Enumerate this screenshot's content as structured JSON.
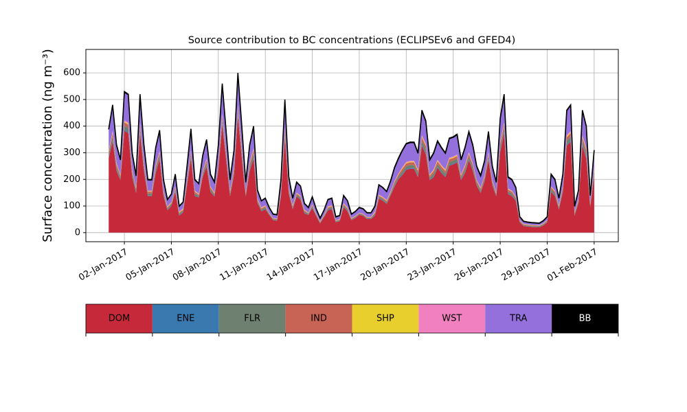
{
  "chart_data": {
    "type": "stacked_area",
    "title": "Source contribution to BC concentrations (ECLIPSEv6 and GFED4)",
    "ylabel": "Surface concentration (ng m⁻³)",
    "x": [
      "2017-01-01T00:00",
      "2017-01-01T06:00",
      "2017-01-01T12:00",
      "2017-01-01T18:00",
      "2017-01-02T00:00",
      "2017-01-02T06:00",
      "2017-01-02T12:00",
      "2017-01-02T18:00",
      "2017-01-03T00:00",
      "2017-01-03T06:00",
      "2017-01-03T12:00",
      "2017-01-03T18:00",
      "2017-01-04T00:00",
      "2017-01-04T06:00",
      "2017-01-04T12:00",
      "2017-01-04T18:00",
      "2017-01-05T00:00",
      "2017-01-05T06:00",
      "2017-01-05T12:00",
      "2017-01-05T18:00",
      "2017-01-06T00:00",
      "2017-01-06T06:00",
      "2017-01-06T12:00",
      "2017-01-06T18:00",
      "2017-01-07T00:00",
      "2017-01-07T06:00",
      "2017-01-07T12:00",
      "2017-01-07T18:00",
      "2017-01-08T00:00",
      "2017-01-08T06:00",
      "2017-01-08T12:00",
      "2017-01-08T18:00",
      "2017-01-09T00:00",
      "2017-01-09T06:00",
      "2017-01-09T12:00",
      "2017-01-09T18:00",
      "2017-01-10T00:00",
      "2017-01-10T06:00",
      "2017-01-10T12:00",
      "2017-01-10T18:00",
      "2017-01-11T00:00",
      "2017-01-11T06:00",
      "2017-01-11T12:00",
      "2017-01-11T18:00",
      "2017-01-12T00:00",
      "2017-01-12T06:00",
      "2017-01-12T12:00",
      "2017-01-12T18:00",
      "2017-01-13T00:00",
      "2017-01-13T06:00",
      "2017-01-13T12:00",
      "2017-01-13T18:00",
      "2017-01-14T00:00",
      "2017-01-14T06:00",
      "2017-01-14T12:00",
      "2017-01-14T18:00",
      "2017-01-15T00:00",
      "2017-01-15T06:00",
      "2017-01-15T12:00",
      "2017-01-15T18:00",
      "2017-01-16T00:00",
      "2017-01-16T06:00",
      "2017-01-16T12:00",
      "2017-01-16T18:00",
      "2017-01-17T00:00",
      "2017-01-17T06:00",
      "2017-01-17T12:00",
      "2017-01-17T18:00",
      "2017-01-18T00:00",
      "2017-01-18T06:00",
      "2017-01-18T12:00",
      "2017-01-18T18:00",
      "2017-01-19T00:00",
      "2017-01-19T06:00",
      "2017-01-19T12:00",
      "2017-01-19T18:00",
      "2017-01-20T00:00",
      "2017-01-20T06:00",
      "2017-01-20T12:00",
      "2017-01-20T18:00",
      "2017-01-21T00:00",
      "2017-01-21T06:00",
      "2017-01-21T12:00",
      "2017-01-21T18:00",
      "2017-01-22T00:00",
      "2017-01-22T06:00",
      "2017-01-22T12:00",
      "2017-01-22T18:00",
      "2017-01-23T00:00",
      "2017-01-23T06:00",
      "2017-01-23T12:00",
      "2017-01-23T18:00",
      "2017-01-24T00:00",
      "2017-01-24T06:00",
      "2017-01-24T12:00",
      "2017-01-24T18:00",
      "2017-01-25T00:00",
      "2017-01-25T06:00",
      "2017-01-25T12:00",
      "2017-01-25T18:00",
      "2017-01-26T00:00",
      "2017-01-26T06:00",
      "2017-01-26T12:00",
      "2017-01-26T18:00",
      "2017-01-27T00:00",
      "2017-01-27T06:00",
      "2017-01-27T12:00",
      "2017-01-27T18:00",
      "2017-01-28T00:00",
      "2017-01-28T06:00",
      "2017-01-28T12:00",
      "2017-01-28T18:00",
      "2017-01-29T00:00",
      "2017-01-29T06:00",
      "2017-01-29T12:00",
      "2017-01-29T18:00",
      "2017-01-30T00:00",
      "2017-01-30T06:00",
      "2017-01-30T12:00",
      "2017-01-30T18:00",
      "2017-01-31T00:00",
      "2017-01-31T06:00",
      "2017-01-31T12:00",
      "2017-01-31T18:00",
      "2017-02-01T00:00"
    ],
    "series": [
      {
        "name": "DOM",
        "color": "#c62a3a",
        "values": [
          280,
          342,
          232,
          197,
          382,
          374,
          208,
          149,
          374,
          232,
          137,
          137,
          224,
          276,
          137,
          84,
          100,
          153,
          64,
          76,
          177,
          280,
          137,
          132,
          209,
          248,
          153,
          136,
          232,
          406,
          272,
          137,
          216,
          438,
          278,
          136,
          232,
          278,
          112,
          80,
          88,
          67,
          47,
          45,
          137,
          358,
          145,
          88,
          136,
          124,
          72,
          67,
          92,
          63,
          35,
          59,
          84,
          88,
          39,
          43,
          96,
          80,
          47,
          55,
          67,
          63,
          51,
          51,
          64,
          128,
          120,
          108,
          140,
          173,
          201,
          216,
          236,
          240,
          240,
          208,
          326,
          294,
          197,
          208,
          244,
          224,
          208,
          252,
          256,
          264,
          197,
          224,
          272,
          232,
          177,
          149,
          193,
          272,
          177,
          136,
          302,
          374,
          145,
          137,
          120,
          39,
          25,
          23,
          21,
          21,
          20,
          27,
          39,
          153,
          137,
          88,
          153,
          326,
          342,
          64,
          112,
          326,
          278,
          96,
          216
        ]
      },
      {
        "name": "ENE",
        "color": "#3a78b0",
        "values": [
          3,
          4,
          3,
          2,
          4,
          4,
          3,
          2,
          4,
          3,
          2,
          2,
          3,
          3,
          2,
          2,
          2,
          2,
          2,
          2,
          2,
          3,
          2,
          2,
          2,
          3,
          2,
          2,
          3,
          4,
          3,
          2,
          3,
          4,
          4,
          2,
          3,
          4,
          2,
          2,
          2,
          1,
          1,
          1,
          2,
          4,
          2,
          2,
          2,
          2,
          2,
          1,
          2,
          1,
          1,
          1,
          2,
          2,
          1,
          1,
          2,
          2,
          1,
          1,
          1,
          1,
          1,
          1,
          2,
          2,
          2,
          2,
          2,
          2,
          2,
          3,
          3,
          3,
          3,
          3,
          4,
          4,
          2,
          3,
          3,
          3,
          3,
          3,
          3,
          3,
          2,
          3,
          3,
          3,
          2,
          2,
          2,
          3,
          2,
          2,
          4,
          4,
          2,
          2,
          2,
          1,
          1,
          1,
          1,
          1,
          1,
          1,
          1,
          2,
          2,
          2,
          2,
          4,
          4,
          2,
          2,
          4,
          4,
          2,
          3
        ]
      },
      {
        "name": "FLR",
        "color": "#6e8070",
        "values": [
          11,
          15,
          11,
          8,
          15,
          15,
          11,
          8,
          15,
          11,
          8,
          8,
          11,
          11,
          8,
          5,
          5,
          8,
          5,
          5,
          8,
          11,
          8,
          5,
          8,
          11,
          8,
          5,
          11,
          15,
          11,
          8,
          11,
          15,
          15,
          5,
          11,
          15,
          5,
          5,
          5,
          3,
          3,
          3,
          8,
          15,
          8,
          5,
          5,
          5,
          5,
          3,
          5,
          3,
          3,
          3,
          5,
          5,
          3,
          3,
          5,
          5,
          3,
          3,
          3,
          3,
          3,
          3,
          5,
          5,
          5,
          5,
          5,
          8,
          8,
          11,
          11,
          11,
          11,
          11,
          15,
          15,
          8,
          11,
          11,
          11,
          11,
          11,
          11,
          11,
          8,
          11,
          11,
          11,
          8,
          8,
          8,
          11,
          8,
          5,
          15,
          15,
          8,
          8,
          5,
          3,
          3,
          3,
          3,
          3,
          3,
          3,
          3,
          8,
          8,
          5,
          8,
          15,
          15,
          5,
          5,
          15,
          15,
          5,
          11
        ]
      },
      {
        "name": "IND",
        "color": "#c86455",
        "values": [
          10,
          13,
          10,
          7,
          13,
          13,
          10,
          7,
          13,
          10,
          7,
          7,
          10,
          10,
          7,
          4,
          4,
          7,
          4,
          4,
          7,
          10,
          7,
          4,
          7,
          10,
          7,
          4,
          10,
          13,
          10,
          7,
          10,
          13,
          13,
          4,
          10,
          13,
          4,
          4,
          4,
          2,
          2,
          2,
          7,
          13,
          7,
          4,
          4,
          4,
          4,
          2,
          4,
          2,
          2,
          2,
          4,
          4,
          2,
          2,
          4,
          4,
          2,
          2,
          2,
          2,
          2,
          2,
          4,
          4,
          4,
          4,
          4,
          7,
          7,
          10,
          10,
          10,
          10,
          10,
          13,
          13,
          7,
          10,
          10,
          10,
          10,
          10,
          10,
          10,
          7,
          10,
          10,
          10,
          7,
          7,
          7,
          10,
          7,
          4,
          13,
          13,
          7,
          7,
          4,
          2,
          2,
          2,
          2,
          2,
          2,
          2,
          2,
          7,
          7,
          4,
          7,
          13,
          13,
          4,
          4,
          13,
          13,
          4,
          10
        ]
      },
      {
        "name": "SHP",
        "color": "#e8cf2e",
        "values": [
          3,
          4,
          3,
          2,
          4,
          4,
          3,
          2,
          4,
          3,
          2,
          2,
          3,
          3,
          2,
          2,
          2,
          2,
          2,
          2,
          2,
          3,
          2,
          2,
          2,
          3,
          2,
          2,
          3,
          4,
          3,
          2,
          3,
          4,
          4,
          2,
          3,
          4,
          2,
          2,
          2,
          1,
          1,
          1,
          2,
          4,
          2,
          2,
          2,
          2,
          2,
          1,
          2,
          1,
          1,
          1,
          2,
          2,
          1,
          1,
          2,
          2,
          1,
          1,
          1,
          1,
          1,
          1,
          2,
          2,
          2,
          2,
          2,
          2,
          2,
          3,
          3,
          3,
          3,
          3,
          4,
          4,
          2,
          3,
          3,
          3,
          3,
          3,
          3,
          3,
          2,
          3,
          3,
          3,
          2,
          2,
          2,
          3,
          2,
          2,
          4,
          4,
          2,
          2,
          2,
          1,
          1,
          1,
          1,
          1,
          1,
          1,
          1,
          2,
          2,
          2,
          2,
          4,
          4,
          2,
          2,
          4,
          4,
          2,
          3
        ]
      },
      {
        "name": "WST",
        "color": "#f080c0",
        "values": [
          3,
          4,
          3,
          2,
          4,
          4,
          3,
          2,
          4,
          3,
          2,
          2,
          3,
          3,
          2,
          2,
          2,
          2,
          2,
          2,
          2,
          3,
          2,
          2,
          2,
          3,
          2,
          2,
          3,
          4,
          3,
          2,
          3,
          4,
          4,
          2,
          3,
          4,
          2,
          2,
          2,
          1,
          1,
          1,
          2,
          4,
          2,
          2,
          2,
          2,
          2,
          1,
          2,
          1,
          1,
          1,
          2,
          2,
          1,
          1,
          2,
          2,
          1,
          1,
          1,
          1,
          1,
          1,
          2,
          2,
          2,
          2,
          2,
          2,
          2,
          3,
          3,
          3,
          3,
          3,
          4,
          4,
          2,
          3,
          3,
          3,
          3,
          3,
          3,
          3,
          2,
          3,
          3,
          3,
          2,
          2,
          2,
          3,
          2,
          2,
          4,
          4,
          2,
          2,
          2,
          1,
          1,
          1,
          1,
          1,
          1,
          1,
          1,
          2,
          2,
          2,
          2,
          4,
          4,
          2,
          2,
          4,
          4,
          2,
          3
        ]
      },
      {
        "name": "TRA",
        "color": "#9370db",
        "values": [
          78,
          96,
          66,
          55,
          106,
          104,
          60,
          43,
          104,
          66,
          40,
          40,
          64,
          77,
          40,
          25,
          29,
          44,
          20,
          23,
          50,
          78,
          40,
          37,
          58,
          70,
          44,
          38,
          66,
          112,
          76,
          40,
          62,
          120,
          80,
          38,
          66,
          80,
          32,
          24,
          26,
          19,
          14,
          14,
          40,
          100,
          42,
          26,
          38,
          35,
          22,
          19,
          27,
          18,
          11,
          17,
          25,
          26,
          12,
          13,
          28,
          24,
          14,
          16,
          19,
          18,
          15,
          15,
          20,
          36,
          34,
          31,
          39,
          49,
          56,
          62,
          67,
          68,
          68,
          60,
          92,
          84,
          55,
          60,
          69,
          64,
          60,
          71,
          72,
          74,
          55,
          64,
          76,
          66,
          50,
          43,
          54,
          76,
          50,
          38,
          86,
          104,
          42,
          40,
          34,
          12,
          9,
          8,
          8,
          7,
          7,
          9,
          12,
          44,
          40,
          26,
          44,
          92,
          96,
          20,
          32,
          92,
          80,
          28,
          62
        ]
      },
      {
        "name": "BB",
        "color": "#000000",
        "values": [
          2,
          2,
          2,
          2,
          2,
          2,
          2,
          2,
          2,
          2,
          2,
          2,
          2,
          2,
          2,
          1,
          1,
          2,
          1,
          1,
          2,
          2,
          2,
          1,
          2,
          2,
          2,
          1,
          2,
          2,
          2,
          2,
          2,
          2,
          2,
          1,
          2,
          2,
          1,
          1,
          1,
          1,
          1,
          1,
          2,
          2,
          2,
          1,
          1,
          1,
          1,
          1,
          1,
          1,
          1,
          1,
          1,
          1,
          1,
          1,
          1,
          1,
          1,
          1,
          1,
          1,
          1,
          1,
          1,
          1,
          1,
          1,
          1,
          2,
          2,
          2,
          2,
          2,
          2,
          2,
          2,
          2,
          2,
          2,
          2,
          2,
          2,
          2,
          2,
          2,
          2,
          2,
          2,
          2,
          2,
          2,
          2,
          2,
          2,
          1,
          2,
          2,
          2,
          2,
          1,
          1,
          1,
          1,
          1,
          1,
          1,
          1,
          1,
          2,
          2,
          1,
          2,
          2,
          2,
          1,
          1,
          2,
          2,
          1,
          2
        ]
      }
    ],
    "xlim": [
      "2016-12-30T13:00",
      "2017-02-02T13:00"
    ],
    "xticks": [
      {
        "value": "2017-01-02T00:00",
        "label": "02-Jan-2017"
      },
      {
        "value": "2017-01-05T00:00",
        "label": "05-Jan-2017"
      },
      {
        "value": "2017-01-08T00:00",
        "label": "08-Jan-2017"
      },
      {
        "value": "2017-01-11T00:00",
        "label": "11-Jan-2017"
      },
      {
        "value": "2017-01-14T00:00",
        "label": "14-Jan-2017"
      },
      {
        "value": "2017-01-17T00:00",
        "label": "17-Jan-2017"
      },
      {
        "value": "2017-01-20T00:00",
        "label": "20-Jan-2017"
      },
      {
        "value": "2017-01-23T00:00",
        "label": "23-Jan-2017"
      },
      {
        "value": "2017-01-26T00:00",
        "label": "26-Jan-2017"
      },
      {
        "value": "2017-01-29T00:00",
        "label": "29-Jan-2017"
      },
      {
        "value": "2017-02-01T00:00",
        "label": "01-Feb-2017"
      }
    ],
    "ylim": [
      -34,
      688
    ],
    "yticks": [
      0,
      100,
      200,
      300,
      400,
      500,
      600
    ],
    "grid": true
  }
}
